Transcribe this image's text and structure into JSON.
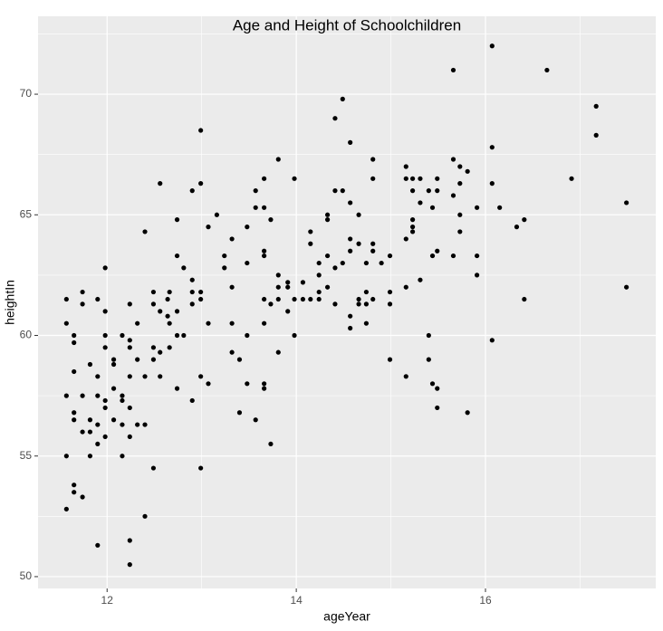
{
  "chart_data": {
    "type": "scatter",
    "title": "Age and Height of Schoolchildren",
    "x_label": "ageYear",
    "y_label": "heightIn",
    "color": "#000000",
    "grid": true,
    "xlim": [
      11.27,
      17.8
    ],
    "ylim": [
      49.51,
      73.23
    ],
    "xticks": [
      12,
      14,
      16
    ],
    "yticks": [
      50,
      55,
      60,
      65,
      70
    ],
    "x_minor_ticks": [
      13,
      15,
      17
    ],
    "y_minor_ticks": [
      52.5,
      57.5,
      62.5,
      67.5,
      72.5
    ],
    "x": [
      11.57,
      11.57,
      11.57,
      11.57,
      11.57,
      11.65,
      11.65,
      11.65,
      11.65,
      11.65,
      11.65,
      11.65,
      11.74,
      11.74,
      11.74,
      11.74,
      11.74,
      11.82,
      11.82,
      11.82,
      11.82,
      11.9,
      11.9,
      11.9,
      11.9,
      11.9,
      11.9,
      11.98,
      11.98,
      11.98,
      11.98,
      11.98,
      11.98,
      11.98,
      12.07,
      12.07,
      12.07,
      12.07,
      12.16,
      12.16,
      12.16,
      12.16,
      12.16,
      12.24,
      12.24,
      12.24,
      12.24,
      12.24,
      12.24,
      12.24,
      12.24,
      12.32,
      12.32,
      12.32,
      12.4,
      12.4,
      12.4,
      12.4,
      12.49,
      12.49,
      12.49,
      12.49,
      12.49,
      12.56,
      12.56,
      12.56,
      12.56,
      12.64,
      12.64,
      12.66,
      12.66,
      12.66,
      12.74,
      12.74,
      12.74,
      12.74,
      12.74,
      12.81,
      12.81,
      12.9,
      12.9,
      12.9,
      12.9,
      12.9,
      12.99,
      12.99,
      12.99,
      12.99,
      12.99,
      12.99,
      13.07,
      13.07,
      13.07,
      13.16,
      13.24,
      13.24,
      13.32,
      13.32,
      13.32,
      13.32,
      13.4,
      13.4,
      13.48,
      13.48,
      13.48,
      13.48,
      13.57,
      13.57,
      13.57,
      13.66,
      13.66,
      13.66,
      13.66,
      13.66,
      13.66,
      13.66,
      13.66,
      13.73,
      13.73,
      13.73,
      13.81,
      13.81,
      13.81,
      13.81,
      13.81,
      13.91,
      13.91,
      13.91,
      13.98,
      13.98,
      13.98,
      14.07,
      14.07,
      14.15,
      14.15,
      14.15,
      14.24,
      14.24,
      14.24,
      14.24,
      14.33,
      14.33,
      14.33,
      14.33,
      14.41,
      14.41,
      14.41,
      14.41,
      14.49,
      14.49,
      14.49,
      14.57,
      14.57,
      14.57,
      14.57,
      14.57,
      14.57,
      14.66,
      14.66,
      14.66,
      14.66,
      14.74,
      14.74,
      14.74,
      14.74,
      14.81,
      14.81,
      14.81,
      14.81,
      14.81,
      14.9,
      14.99,
      14.99,
      14.99,
      14.99,
      15.16,
      15.16,
      15.16,
      15.16,
      15.16,
      15.23,
      15.23,
      15.23,
      15.23,
      15.23,
      15.31,
      15.31,
      15.31,
      15.4,
      15.4,
      15.4,
      15.44,
      15.44,
      15.44,
      15.49,
      15.49,
      15.49,
      15.49,
      15.49,
      15.66,
      15.66,
      15.66,
      15.66,
      15.73,
      15.73,
      15.73,
      15.73,
      15.81,
      15.81,
      15.91,
      15.91,
      15.91,
      16.07,
      16.07,
      16.07,
      16.07,
      16.15,
      16.33,
      16.41,
      16.41,
      16.65,
      16.91,
      17.17,
      17.17,
      17.49,
      17.49
    ],
    "values": [
      61.5,
      60.5,
      57.5,
      55,
      52.8,
      60,
      59.7,
      58.5,
      56.8,
      56.5,
      53.8,
      53.5,
      61.8,
      61.3,
      57.5,
      56,
      53.3,
      58.8,
      56.5,
      56,
      55,
      61.5,
      58.3,
      57.5,
      56.3,
      55.5,
      51.3,
      62.8,
      61,
      60,
      59.5,
      57.3,
      57,
      55.8,
      59,
      58.8,
      57.8,
      56.5,
      60,
      57.5,
      57.3,
      56.3,
      55,
      61.3,
      59.8,
      59.5,
      58.3,
      57,
      55.8,
      51.5,
      50.5,
      60.5,
      59,
      56.3,
      64.3,
      58.3,
      56.3,
      52.5,
      61.8,
      61.3,
      59.5,
      59,
      54.5,
      66.3,
      61,
      59.3,
      58.3,
      61.5,
      60.8,
      61.8,
      60.5,
      59.5,
      64.8,
      63.3,
      61,
      60,
      57.8,
      62.8,
      60,
      66,
      62.3,
      61.8,
      61.3,
      57.3,
      68.5,
      66.3,
      61.8,
      61.5,
      58.3,
      54.5,
      64.5,
      60.5,
      58,
      65,
      63.3,
      62.8,
      64,
      62,
      60.5,
      59.3,
      59,
      56.8,
      64.5,
      63,
      60,
      58,
      66,
      65.3,
      56.5,
      66.5,
      65.3,
      63.5,
      63.3,
      61.5,
      60.5,
      58,
      57.8,
      64.8,
      61.3,
      55.5,
      67.3,
      62.5,
      62,
      61.5,
      59.3,
      62.2,
      62,
      61,
      66.5,
      61.5,
      60,
      62.2,
      61.5,
      64.3,
      63.8,
      61.5,
      63,
      62.5,
      61.8,
      61.5,
      65,
      64.8,
      63.3,
      62,
      69,
      66,
      62.8,
      61.3,
      69.8,
      66,
      63,
      68,
      65.5,
      64,
      63.5,
      60.8,
      60.3,
      65,
      63.8,
      61.5,
      61.3,
      63,
      61.8,
      61.3,
      60.5,
      67.3,
      66.5,
      63.8,
      63.5,
      61.5,
      63,
      63.3,
      61.8,
      61.3,
      59,
      67,
      66.5,
      64,
      62,
      58.3,
      66.5,
      66,
      64.8,
      64.5,
      64.3,
      66.5,
      65.5,
      62.3,
      66,
      60,
      59,
      65.3,
      63.3,
      58,
      66.5,
      66,
      63.5,
      57.8,
      57,
      71,
      67.3,
      65.8,
      63.3,
      67,
      66.3,
      65,
      64.3,
      66.8,
      56.8,
      65.3,
      63.3,
      62.5,
      72,
      67.8,
      66.3,
      59.8,
      65.3,
      64.5,
      64.8,
      61.5,
      71,
      66.5,
      69.5,
      68.3,
      65.5,
      62
    ]
  }
}
